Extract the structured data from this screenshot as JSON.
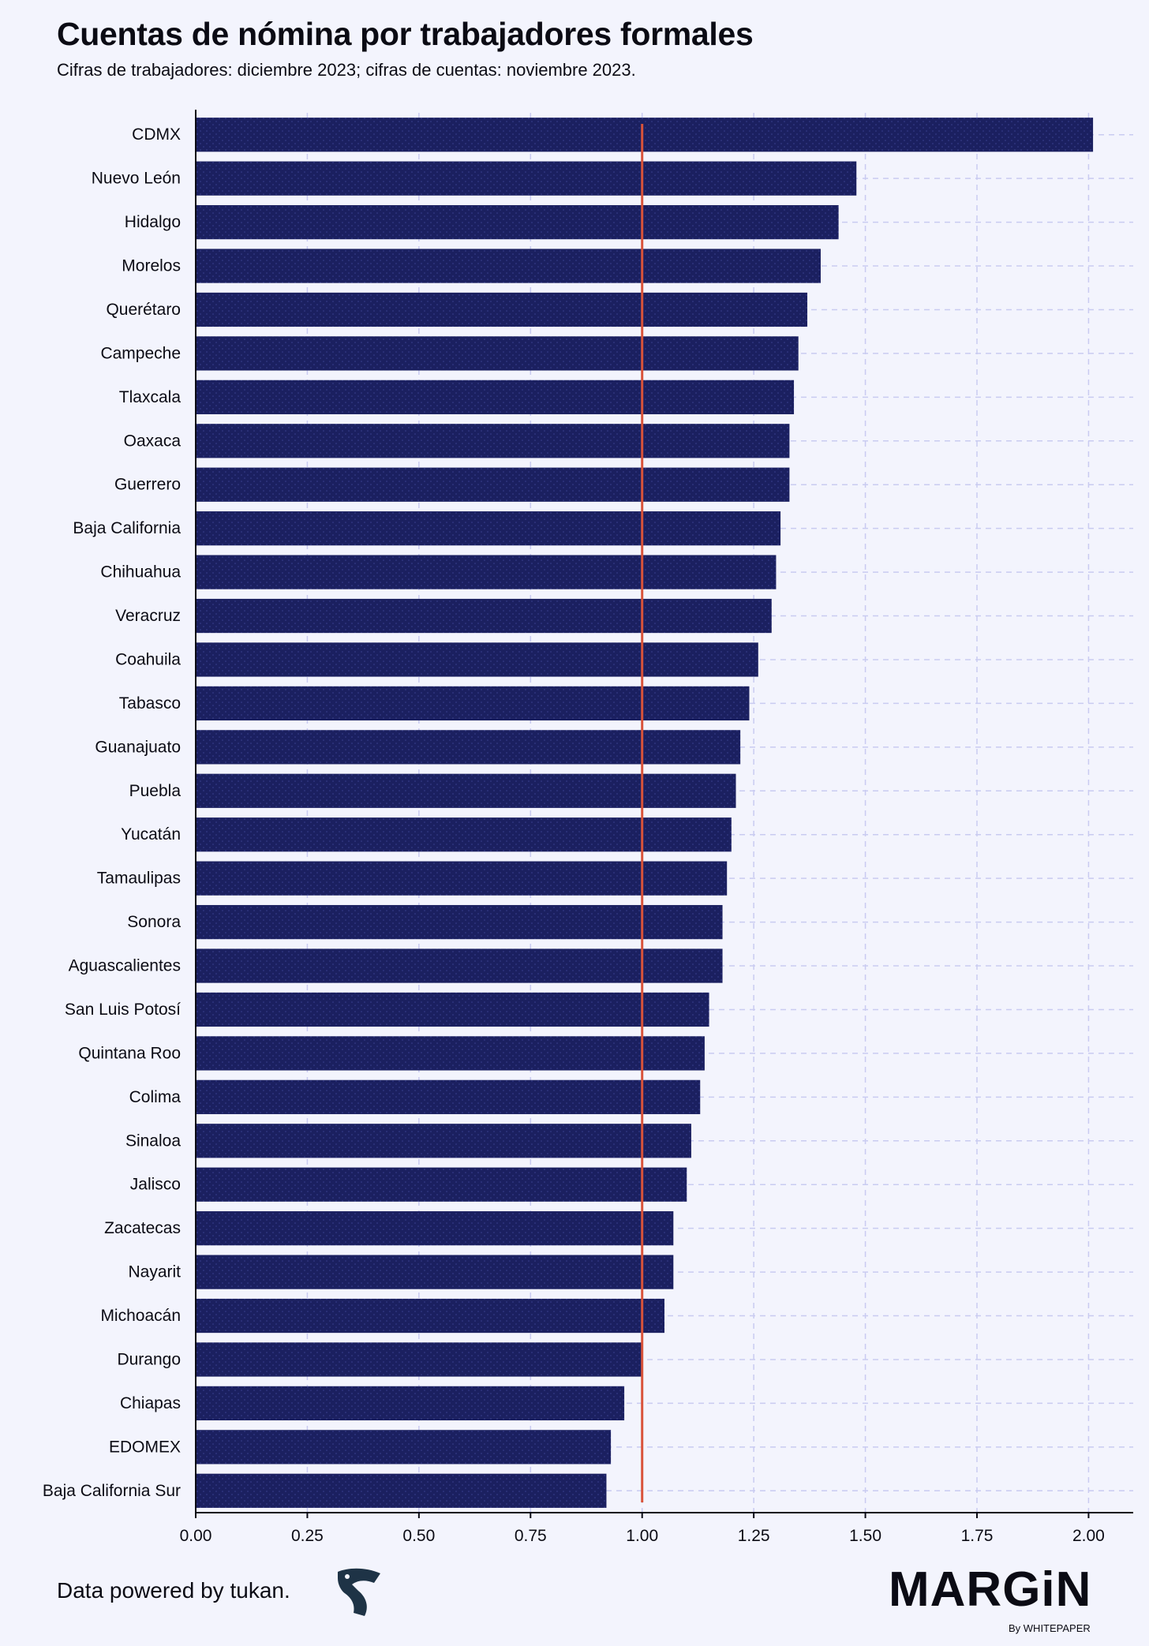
{
  "header": {
    "title": "Cuentas de nómina por trabajadores formales",
    "subtitle": "Cifras de trabajadores: diciembre 2023; cifras de cuentas: noviembre 2023."
  },
  "footer": {
    "credit": "Data powered by tukan.",
    "brand": "MARGiN",
    "brand_sub": "By WHITEPAPER",
    "logo_icon": "tukan-bird-icon"
  },
  "colors": {
    "bar": "#1b2060",
    "reference_line": "#d9533a",
    "grid": "#c9cbf1",
    "background": "#f3f4fd"
  },
  "chart_data": {
    "type": "bar",
    "orientation": "horizontal",
    "title": "Cuentas de nómina por trabajadores formales",
    "xlabel": "",
    "ylabel": "",
    "xlim": [
      0,
      2.1
    ],
    "xticks": [
      0,
      0.25,
      0.5,
      0.75,
      1.0,
      1.25,
      1.5,
      1.75,
      2.0
    ],
    "xtick_labels": [
      "0.00",
      "0.25",
      "0.50",
      "0.75",
      "1.00",
      "1.25",
      "1.50",
      "1.75",
      "2.00"
    ],
    "reference_line": 1.0,
    "grid": true,
    "categories": [
      "CDMX",
      "Nuevo León",
      "Hidalgo",
      "Morelos",
      "Querétaro",
      "Campeche",
      "Tlaxcala",
      "Oaxaca",
      "Guerrero",
      "Baja California",
      "Chihuahua",
      "Veracruz",
      "Coahuila",
      "Tabasco",
      "Guanajuato",
      "Puebla",
      "Yucatán",
      "Tamaulipas",
      "Sonora",
      "Aguascalientes",
      "San Luis Potosí",
      "Quintana Roo",
      "Colima",
      "Sinaloa",
      "Jalisco",
      "Zacatecas",
      "Nayarit",
      "Michoacán",
      "Durango",
      "Chiapas",
      "EDOMEX",
      "Baja California Sur"
    ],
    "values": [
      2.01,
      1.48,
      1.44,
      1.4,
      1.37,
      1.35,
      1.34,
      1.33,
      1.33,
      1.31,
      1.3,
      1.29,
      1.26,
      1.24,
      1.22,
      1.21,
      1.2,
      1.19,
      1.18,
      1.18,
      1.15,
      1.14,
      1.13,
      1.11,
      1.1,
      1.07,
      1.07,
      1.05,
      1.0,
      0.96,
      0.93,
      0.92
    ]
  }
}
